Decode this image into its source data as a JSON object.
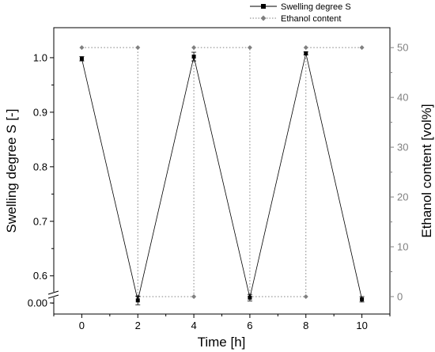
{
  "chart_data": {
    "type": "line",
    "xlabel": "Time [h]",
    "ylabel_left": "Swelling degree S [-]",
    "ylabel_right": "Ethanol content [vol%]",
    "x_ticks": [
      "0",
      "2",
      "4",
      "6",
      "8",
      "10"
    ],
    "y_left_ticks": [
      "0.00",
      "0.6",
      "0.7",
      "0.8",
      "0.9",
      "1.0"
    ],
    "y_right_ticks": [
      "0",
      "10",
      "20",
      "30",
      "40",
      "50"
    ],
    "xlim": [
      -1,
      11
    ],
    "y_left_range": [
      0.53,
      1.055
    ],
    "y_left_axis_break": true,
    "y_right_range": [
      -3.5,
      54
    ],
    "colors": {
      "swelling": "#000000",
      "ethanol": "#808080",
      "right_axis": "#808080"
    },
    "series": [
      {
        "name": "Swelling degree S",
        "axis": "left",
        "line_style": "solid",
        "marker": "square",
        "x": [
          0,
          2,
          4,
          6,
          8,
          10
        ],
        "y": [
          0.998,
          0.555,
          1.002,
          0.56,
          1.008,
          0.557
        ],
        "error": [
          0.004,
          0.008,
          0.008,
          0.006,
          0.003,
          0.005
        ]
      },
      {
        "name": "Ethanol content",
        "axis": "right",
        "line_style": "dotted-step",
        "marker": "diamond",
        "x": [
          0,
          2,
          2,
          4,
          4,
          6,
          6,
          8,
          8,
          10
        ],
        "y": [
          50,
          50,
          0,
          0,
          50,
          50,
          0,
          0,
          50,
          50
        ]
      }
    ],
    "legend": {
      "position": "top-right",
      "entries": [
        "Swelling degree S",
        "Ethanol content"
      ]
    }
  }
}
